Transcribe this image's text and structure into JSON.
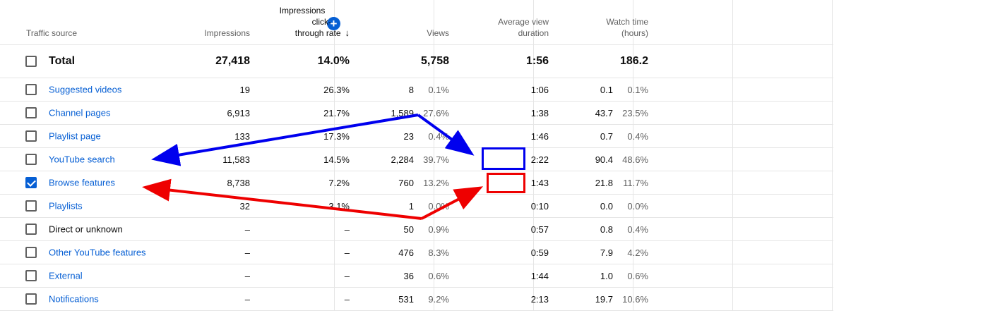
{
  "header": {
    "traffic_source": "Traffic source",
    "impressions": "Impressions",
    "ctr_line1": "Impressions",
    "ctr_line2": "click-",
    "ctr_line3": "through rate",
    "sort_icon": "arrow-down-icon",
    "views": "Views",
    "avd_line1": "Average view",
    "avd_line2": "duration",
    "watch_line1": "Watch time",
    "watch_line2": "(hours)",
    "add_icon": "plus-circle-icon"
  },
  "total": {
    "label": "Total",
    "impressions": "27,418",
    "ctr": "14.0%",
    "views": "5,758",
    "avd": "1:56",
    "watch": "186.2"
  },
  "rows": [
    {
      "source": "Suggested videos",
      "link": true,
      "checked": false,
      "impressions": "19",
      "ctr": "26.3%",
      "views": "8",
      "views_pct": "0.1%",
      "avd": "1:06",
      "watch": "0.1",
      "watch_pct": "0.1%"
    },
    {
      "source": "Channel pages",
      "link": true,
      "checked": false,
      "impressions": "6,913",
      "ctr": "21.7%",
      "views": "1,589",
      "views_pct": "27.6%",
      "avd": "1:38",
      "watch": "43.7",
      "watch_pct": "23.5%"
    },
    {
      "source": "Playlist page",
      "link": true,
      "checked": false,
      "impressions": "133",
      "ctr": "17.3%",
      "views": "23",
      "views_pct": "0.4%",
      "avd": "1:46",
      "watch": "0.7",
      "watch_pct": "0.4%"
    },
    {
      "source": "YouTube search",
      "link": true,
      "checked": false,
      "impressions": "11,583",
      "ctr": "14.5%",
      "views": "2,284",
      "views_pct": "39.7%",
      "avd": "2:22",
      "watch": "90.4",
      "watch_pct": "48.6%"
    },
    {
      "source": "Browse features",
      "link": true,
      "checked": true,
      "impressions": "8,738",
      "ctr": "7.2%",
      "views": "760",
      "views_pct": "13.2%",
      "avd": "1:43",
      "watch": "21.8",
      "watch_pct": "11.7%"
    },
    {
      "source": "Playlists",
      "link": true,
      "checked": false,
      "impressions": "32",
      "ctr": "3.1%",
      "views": "1",
      "views_pct": "0.0%",
      "avd": "0:10",
      "watch": "0.0",
      "watch_pct": "0.0%"
    },
    {
      "source": "Direct or unknown",
      "link": false,
      "checked": false,
      "impressions": "–",
      "ctr": "–",
      "views": "50",
      "views_pct": "0.9%",
      "avd": "0:57",
      "watch": "0.8",
      "watch_pct": "0.4%"
    },
    {
      "source": "Other YouTube features",
      "link": true,
      "checked": false,
      "impressions": "–",
      "ctr": "–",
      "views": "476",
      "views_pct": "8.3%",
      "avd": "0:59",
      "watch": "7.9",
      "watch_pct": "4.2%"
    },
    {
      "source": "External",
      "link": true,
      "checked": false,
      "impressions": "–",
      "ctr": "–",
      "views": "36",
      "views_pct": "0.6%",
      "avd": "1:44",
      "watch": "1.0",
      "watch_pct": "0.6%"
    },
    {
      "source": "Notifications",
      "link": true,
      "checked": false,
      "impressions": "–",
      "ctr": "–",
      "views": "531",
      "views_pct": "9.2%",
      "avd": "2:13",
      "watch": "19.7",
      "watch_pct": "10.6%"
    }
  ],
  "annotations": {
    "blue": "#0000ee",
    "red": "#ee0000"
  }
}
